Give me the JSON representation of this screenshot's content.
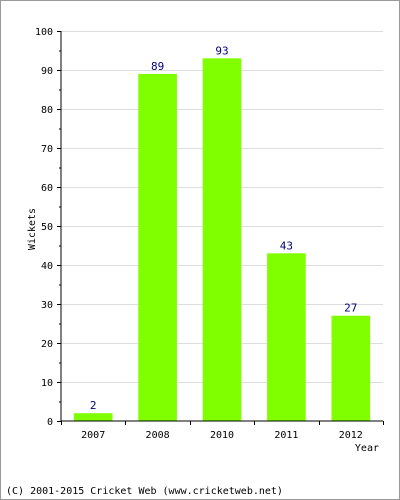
{
  "chart_data": {
    "type": "bar",
    "categories": [
      "2007",
      "2008",
      "2010",
      "2011",
      "2012"
    ],
    "values": [
      2,
      89,
      93,
      43,
      27
    ],
    "data_labels": [
      "2",
      "89",
      "93",
      "43",
      "27"
    ],
    "title": "",
    "xlabel": "Year",
    "ylabel": "Wickets",
    "ylim": [
      0,
      100
    ],
    "yticks": [
      "0",
      "10",
      "20",
      "30",
      "40",
      "50",
      "60",
      "70",
      "80",
      "90",
      "100"
    ],
    "grid": true,
    "colors": {
      "bar": "#80ff00",
      "data_label": "#00007f",
      "grid": "#dddddd",
      "axis": "#000000"
    }
  },
  "footer": {
    "copyright": "(C) 2001-2015 Cricket Web (www.cricketweb.net)"
  }
}
